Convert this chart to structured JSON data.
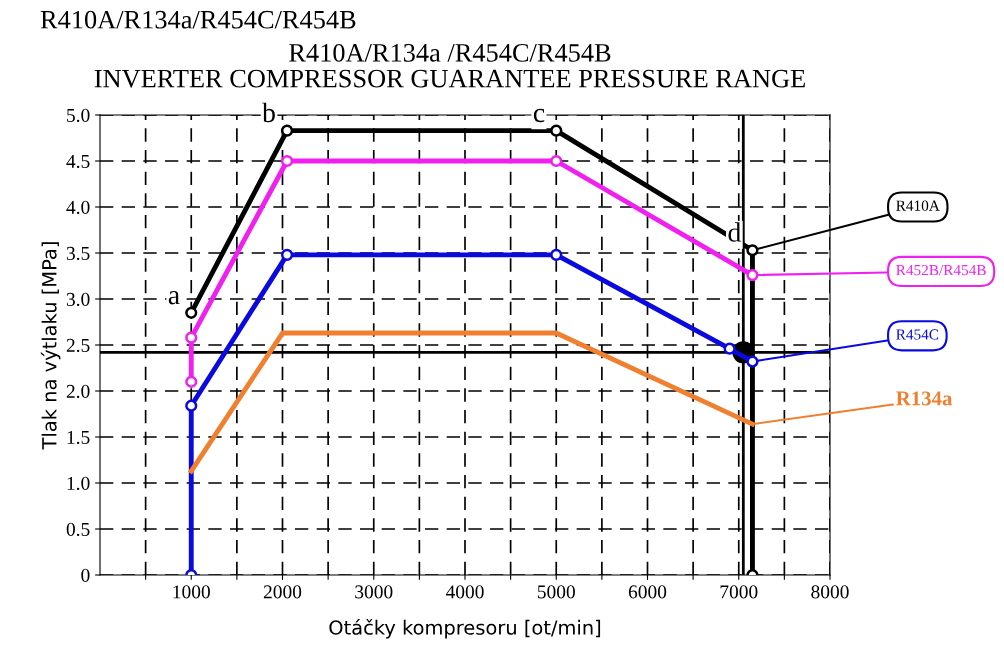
{
  "chart_data": {
    "type": "line",
    "title": "R410A/R134a/R454C/R454B",
    "subtitle": "R410A/R134a /R454C/R454B\nINVERTER COMPRESSOR GUARANTEE PRESSURE RANGE",
    "xlabel": "Otáčky kompresoru [ot/min]",
    "ylabel": "Tlak na výtlaku [MPa]",
    "xlim": [
      0,
      8000
    ],
    "ylim": [
      0,
      5
    ],
    "xticks": [
      {
        "value": 500,
        "label": null
      },
      1000,
      {
        "value": 1500,
        "label": null
      },
      2000,
      {
        "value": 2500,
        "label": null
      },
      3000,
      {
        "value": 3500,
        "label": null
      },
      4000,
      {
        "value": 4500,
        "label": null
      },
      5000,
      {
        "value": 5500,
        "label": null
      },
      6000,
      {
        "value": 6500,
        "label": null
      },
      7000,
      {
        "value": 7500,
        "label": null
      },
      8000
    ],
    "yticks": [
      0,
      {
        "value": 0.5,
        "label": "0.5"
      },
      {
        "value": 1,
        "label": "1.0"
      },
      {
        "value": 1.5,
        "label": "1.5"
      },
      {
        "value": 2,
        "label": "2.0"
      },
      {
        "value": 2.5,
        "label": "2.5"
      },
      {
        "value": 3,
        "label": "3.0"
      },
      {
        "value": 3.5,
        "label": "3.5"
      },
      {
        "value": 4,
        "label": "4.0"
      },
      {
        "value": 4.5,
        "label": "4.5"
      },
      {
        "value": 5,
        "label": "5.0"
      }
    ],
    "grid": true,
    "line_style": "solid",
    "series": [
      {
        "name": "R134a",
        "color": "#f08030",
        "x": [
          1000,
          2000,
          5000,
          7150
        ],
        "values": [
          1.13,
          2.63,
          2.63,
          1.64
        ],
        "marker": "none"
      },
      {
        "name": "R454C",
        "color": "#0a0ae0",
        "x": [
          1000,
          1000,
          2050,
          5000,
          6900,
          7150
        ],
        "values": [
          0,
          1.84,
          3.48,
          3.48,
          2.46,
          2.32
        ],
        "marker": "circle"
      },
      {
        "name": "R452B/R454B",
        "color": "#f020f0",
        "x": [
          1000,
          1000,
          2050,
          5000,
          7150
        ],
        "values": [
          2.1,
          2.58,
          4.5,
          4.5,
          3.26
        ],
        "marker": "circle"
      },
      {
        "name": "R410A",
        "color": "#000000",
        "x": [
          1000,
          2050,
          5000,
          7150,
          7150
        ],
        "values": [
          2.85,
          4.83,
          4.83,
          3.53,
          0
        ],
        "marker": "circle"
      },
      {
        "type": "scatter",
        "color": "#000000",
        "x": [
          7050
        ],
        "values": [
          2.42
        ],
        "marker": "circle"
      }
    ],
    "ref_lines": [
      {
        "axis": "y",
        "value": 2.42,
        "color": "#000000"
      },
      {
        "axis": "x",
        "value": 7050,
        "color": "#000000"
      }
    ],
    "annotations": [
      {
        "text": "a",
        "x": 1000,
        "y": 2.85
      },
      {
        "text": "b",
        "x": 2050,
        "y": 4.83
      },
      {
        "text": "c",
        "x": 5000,
        "y": 4.83
      },
      {
        "text": "d",
        "x": 7150,
        "y": 3.53
      }
    ]
  }
}
